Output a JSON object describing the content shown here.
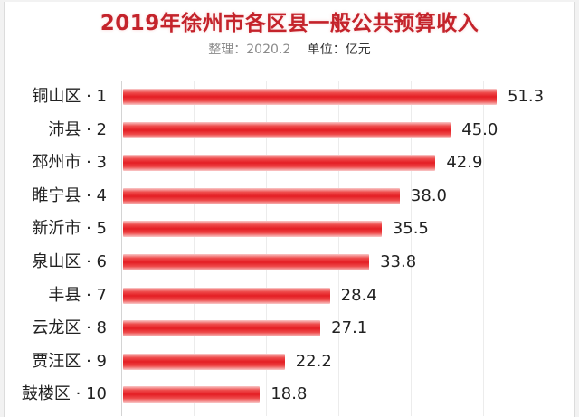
{
  "header": {
    "title": "2019年徐州市各区县一般公共预算收入",
    "source": "整理：2020.2",
    "unit": "单位：亿元"
  },
  "colors": {
    "title": "#c4232b",
    "bar": "#e41e24"
  },
  "chart_data": {
    "type": "bar",
    "orientation": "horizontal",
    "title": "2019年徐州市各区县一般公共预算收入",
    "subtitle": "整理：2020.2  单位：亿元",
    "xlabel": "",
    "ylabel": "",
    "unit": "亿元",
    "categories": [
      "铜山区 · 1",
      "沛县 · 2",
      "邳州市 · 3",
      "睢宁县 · 4",
      "新沂市 · 5",
      "泉山区 · 6",
      "丰县 · 7",
      "云龙区 · 8",
      "贾汪区 · 9",
      "鼓楼区 · 10"
    ],
    "values": [
      51.3,
      45.0,
      42.9,
      38.0,
      35.5,
      33.8,
      28.4,
      27.1,
      22.2,
      18.8
    ],
    "value_labels": [
      "51.3",
      "45.0",
      "42.9",
      "38.0",
      "35.5",
      "33.8",
      "28.4",
      "27.1",
      "22.2",
      "18.8"
    ],
    "xlim": [
      0,
      60
    ],
    "grid": true,
    "legend": "none"
  }
}
